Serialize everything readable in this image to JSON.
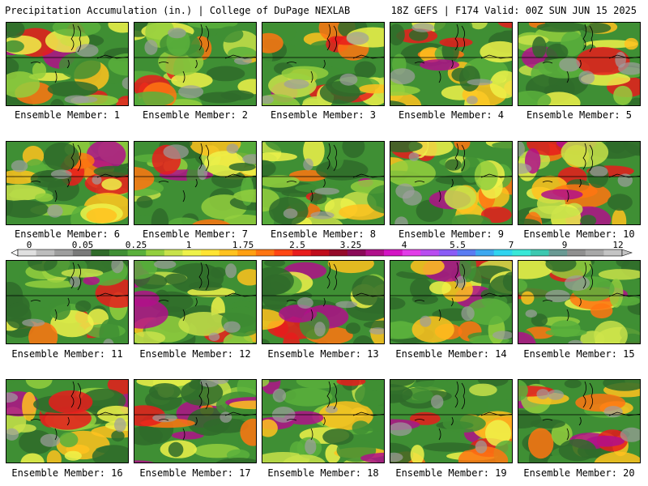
{
  "header": {
    "title": "Precipitation Accumulation (in.) | College of DuPage NEXLAB",
    "run_info": "18Z GEFS | F174 Valid: 00Z SUN JUN 15 2025"
  },
  "legend": {
    "tick_labels": [
      "0",
      "0.05",
      "0.25",
      "1",
      "1.75",
      "2.5",
      "3.25",
      "4",
      "5.5",
      "7",
      "9",
      "12"
    ],
    "colors": [
      "#e0e0e0",
      "#bdbdbd",
      "#9e9e9e",
      "#7a7a7a",
      "#2f6b2a",
      "#3f8f34",
      "#5ab03c",
      "#93cf3e",
      "#c8e24a",
      "#eef24a",
      "#ffe433",
      "#ffc21f",
      "#ff9f12",
      "#ff7512",
      "#ff4614",
      "#e81c1c",
      "#c00c1c",
      "#940a2a",
      "#8a0a58",
      "#b0108a",
      "#d414c4",
      "#e23ce8",
      "#b84cf0",
      "#8a5cf6",
      "#5a7cf2",
      "#3ca8f0",
      "#30d4f0",
      "#38e8d8",
      "#3cc8b0",
      "#6a9a94",
      "#909090",
      "#a8a8a8",
      "#c4c4c4"
    ]
  },
  "members": [
    {
      "label": "Ensemble Member: 1"
    },
    {
      "label": "Ensemble Member: 2"
    },
    {
      "label": "Ensemble Member: 3"
    },
    {
      "label": "Ensemble Member: 4"
    },
    {
      "label": "Ensemble Member: 5"
    },
    {
      "label": "Ensemble Member: 6"
    },
    {
      "label": "Ensemble Member: 7"
    },
    {
      "label": "Ensemble Member: 8"
    },
    {
      "label": "Ensemble Member: 9"
    },
    {
      "label": "Ensemble Member: 10"
    },
    {
      "label": "Ensemble Member: 11"
    },
    {
      "label": "Ensemble Member: 12"
    },
    {
      "label": "Ensemble Member: 13"
    },
    {
      "label": "Ensemble Member: 14"
    },
    {
      "label": "Ensemble Member: 15"
    },
    {
      "label": "Ensemble Member: 16"
    },
    {
      "label": "Ensemble Member: 17"
    },
    {
      "label": "Ensemble Member: 18"
    },
    {
      "label": "Ensemble Member: 19"
    },
    {
      "label": "Ensemble Member: 20"
    }
  ]
}
